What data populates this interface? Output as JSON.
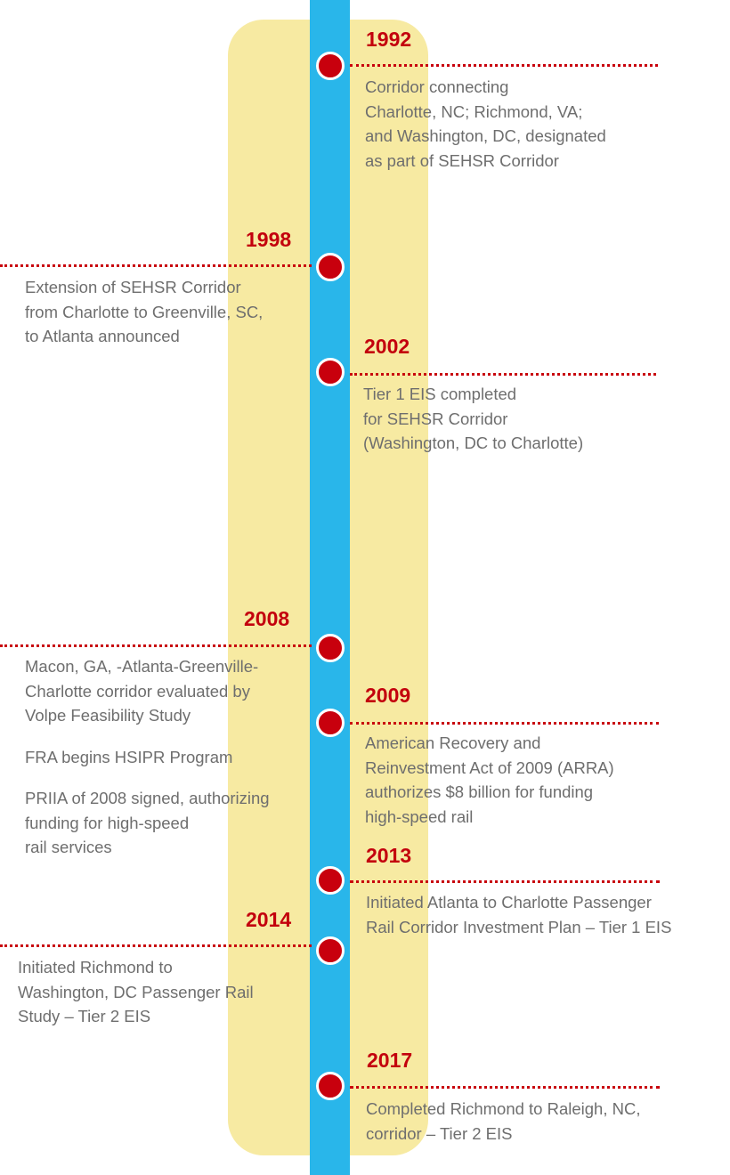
{
  "timeline": {
    "events": [
      {
        "year": "1992",
        "lines": [
          "Corridor connecting",
          "Charlotte, NC; Richmond, VA;",
          "and Washington, DC, designated",
          "as part of SEHSR Corridor"
        ]
      },
      {
        "year": "1998",
        "lines": [
          "Extension of SEHSR Corridor",
          "from Charlotte to Greenville, SC,",
          "to Atlanta announced"
        ]
      },
      {
        "year": "2002",
        "lines": [
          "Tier 1 EIS completed",
          "for SEHSR Corridor",
          "(Washington, DC to Charlotte)"
        ]
      },
      {
        "year": "2008",
        "items": [
          [
            "Macon, GA, -Atlanta-Greenville-",
            "Charlotte corridor evaluated by",
            "Volpe Feasibility Study"
          ],
          [
            "FRA begins HSIPR Program"
          ],
          [
            "PRIIA of 2008 signed, authorizing",
            "funding for high-speed",
            "rail services"
          ]
        ]
      },
      {
        "year": "2009",
        "lines": [
          "American Recovery and",
          "Reinvestment Act of 2009 (ARRA)",
          "authorizes $8 billion for funding",
          "high-speed rail"
        ]
      },
      {
        "year": "2013",
        "lines": [
          "Initiated Atlanta to Charlotte Passenger",
          "Rail Corridor Investment Plan – Tier 1 EIS"
        ]
      },
      {
        "year": "2014",
        "lines": [
          "Initiated Richmond to",
          "Washington, DC Passenger Rail",
          "Study – Tier 2 EIS"
        ]
      },
      {
        "year": "2017",
        "lines": [
          "Completed Richmond to Raleigh, NC,",
          "corridor – Tier 2 EIS"
        ]
      }
    ]
  },
  "colors": {
    "spine": "#29b6ea",
    "band": "#f7eaa2",
    "accent": "#c3000d",
    "text": "#6e6e6e"
  }
}
